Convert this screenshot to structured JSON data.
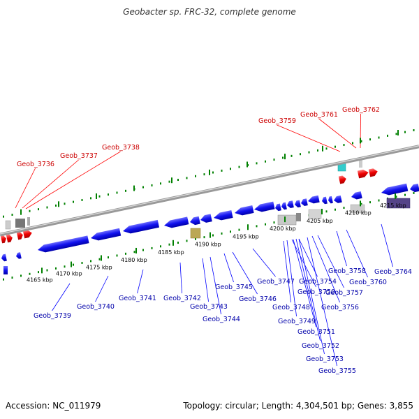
{
  "title": "Geobacter sp. FRC-32, complete genome",
  "footer": {
    "accession": "Accession: NC_011979",
    "summary": "Topology: circular; Length: 4,304,501 bp; Genes: 3,855"
  },
  "colors": {
    "forward_gene": "#ff0000",
    "reverse_gene": "#0000ff",
    "forward_label": "#cc0000",
    "reverse_label": "#0000aa",
    "tick": "#008000",
    "backbone": "#888888"
  },
  "ticks": [
    {
      "label": "4165 kbp"
    },
    {
      "label": "4170 kbp"
    },
    {
      "label": "4175 kbp"
    },
    {
      "label": "4180 kbp"
    },
    {
      "label": "4185 kbp"
    },
    {
      "label": "4190 kbp"
    },
    {
      "label": "4195 kbp"
    },
    {
      "label": "4200 kbp"
    },
    {
      "label": "4205 kbp"
    },
    {
      "label": "4210 kbp"
    },
    {
      "label": "4215 kbp"
    }
  ],
  "forward_labels": [
    "Geob_3736",
    "Geob_3737",
    "Geob_3738",
    "Geob_3759",
    "Geob_3761",
    "Geob_3762"
  ],
  "reverse_labels": [
    "Geob_3739",
    "Geob_3740",
    "Geob_3741",
    "Geob_3742",
    "Geob_3743",
    "Geob_3744",
    "Geob_3745",
    "Geob_3746",
    "Geob_3747",
    "Geob_3748",
    "Geob_3749",
    "Geob_3750",
    "Geob_3751",
    "Geob_3752",
    "Geob_3753",
    "Geob_3754",
    "Geob_3755",
    "Geob_3756",
    "Geob_3757",
    "Geob_3758",
    "Geob_3760",
    "Geob_3764"
  ]
}
